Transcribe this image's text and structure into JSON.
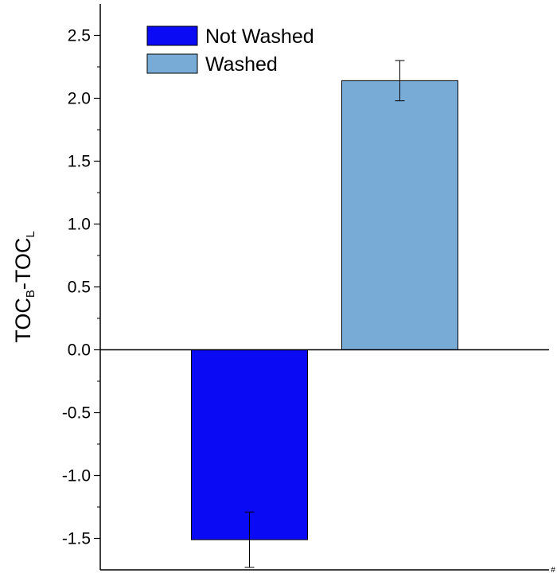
{
  "chart_data": {
    "type": "bar",
    "ylabel": [
      "TOC",
      "B",
      "-TOC",
      "L"
    ],
    "categories": [
      null
    ],
    "series": [
      {
        "name": "Not Washed",
        "color": "#0a0af5",
        "values": [
          -1.51
        ],
        "errors": [
          0.22
        ]
      },
      {
        "name": "Washed",
        "color": "#78abd6",
        "values": [
          2.14
        ],
        "errors": [
          0.16
        ]
      }
    ],
    "ylim": [
      -1.75,
      2.75
    ],
    "yticks": [
      -1.5,
      {
        "value": -1,
        "label": "-1.0"
      },
      -0.5,
      {
        "value": 0,
        "label": "0.0"
      },
      0.5,
      {
        "value": 1,
        "label": "1.0"
      },
      1.5,
      {
        "value": 2,
        "label": "2.0"
      },
      2.5
    ],
    "legend": "upper left",
    "corner_mark": "#"
  }
}
